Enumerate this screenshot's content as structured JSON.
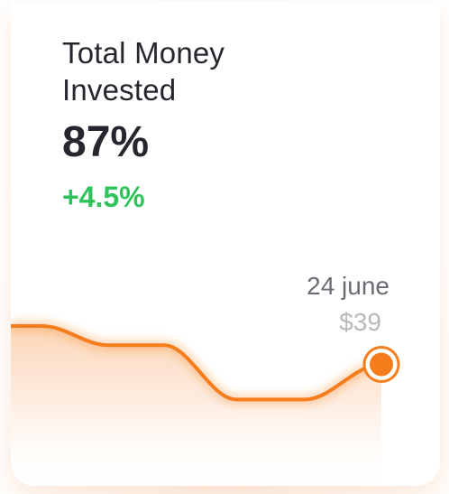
{
  "card": {
    "title": "Total Money Invested",
    "value": "87%",
    "change": "+4.5%"
  },
  "tooltip": {
    "date": "24 june",
    "price": "$39"
  },
  "colors": {
    "line": "#f67d1c",
    "positive": "#2ec35b",
    "text": "#26262e"
  },
  "chart_data": {
    "type": "area",
    "values": [
      5.2,
      5.2,
      4.6,
      4.6,
      2.9,
      2.9,
      4.0
    ],
    "ylim": [
      0,
      6.5
    ],
    "highlight_index": 6
  }
}
